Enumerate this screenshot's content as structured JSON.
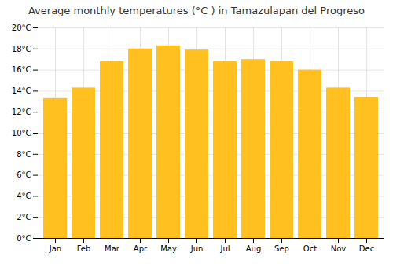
{
  "chart_data": {
    "type": "bar",
    "title": "Average monthly temperatures (°C ) in Tamazulapan del Progreso",
    "categories": [
      "Jan",
      "Feb",
      "Mar",
      "Apr",
      "May",
      "Jun",
      "Jul",
      "Aug",
      "Sep",
      "Oct",
      "Nov",
      "Dec"
    ],
    "values": [
      13.3,
      14.3,
      16.8,
      18.0,
      18.3,
      17.9,
      16.8,
      17.0,
      16.8,
      16.0,
      14.3,
      13.4
    ],
    "color": "#FFC020",
    "ylim": [
      0,
      20
    ],
    "yticks": [
      {
        "value": 0,
        "label": "0°C"
      },
      {
        "value": 2,
        "label": "2°C"
      },
      {
        "value": 4,
        "label": "4°C"
      },
      {
        "value": 6,
        "label": "6°C"
      },
      {
        "value": 8,
        "label": "8°C"
      },
      {
        "value": 10,
        "label": "10°C"
      },
      {
        "value": 12,
        "label": "12°C"
      },
      {
        "value": 14,
        "label": "14°C"
      },
      {
        "value": 16,
        "label": "16°C"
      },
      {
        "value": 18,
        "label": "18°C"
      },
      {
        "value": 20,
        "label": "20°C"
      }
    ],
    "grid": true
  }
}
